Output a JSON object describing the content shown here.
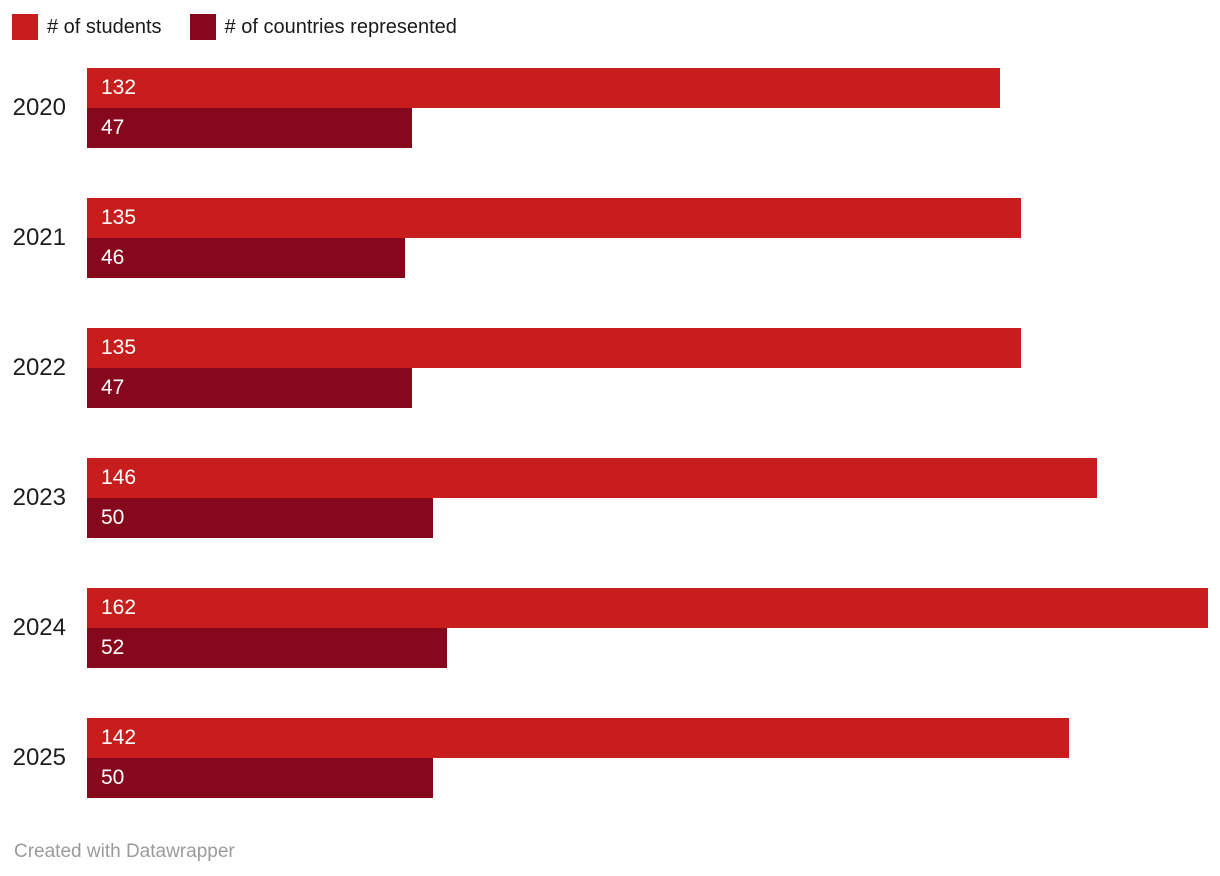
{
  "legend": {
    "items": [
      {
        "label": "# of students",
        "color": "#c71e1d"
      },
      {
        "label": "# of countries represented",
        "color": "#85081d"
      }
    ]
  },
  "footer": {
    "text": "Created with Datawrapper"
  },
  "chart_data": {
    "type": "bar",
    "orientation": "horizontal",
    "grouped": true,
    "title": "",
    "xlabel": "",
    "ylabel": "",
    "categories": [
      "2020",
      "2021",
      "2022",
      "2023",
      "2024",
      "2025"
    ],
    "series": [
      {
        "name": "# of students",
        "color": "#c71e1d",
        "values": [
          132,
          135,
          135,
          146,
          162,
          142
        ]
      },
      {
        "name": "# of countries represented",
        "color": "#85081d",
        "values": [
          47,
          46,
          47,
          50,
          52,
          50
        ]
      }
    ],
    "xlim": [
      0,
      164
    ],
    "grid": false,
    "axes_visible": false,
    "value_labels": "inside-bar-start",
    "value_label_color": "#ffffff",
    "legend_position": "top-left"
  }
}
